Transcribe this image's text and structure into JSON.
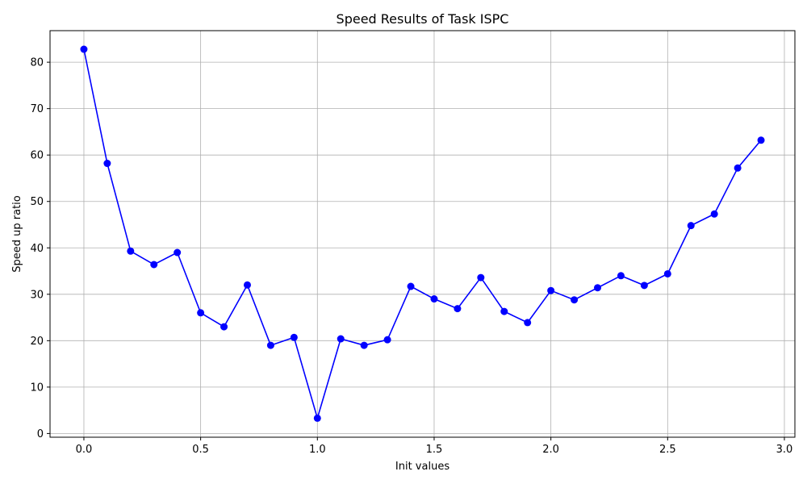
{
  "chart_data": {
    "type": "line",
    "title": "Speed Results of Task ISPC",
    "xlabel": "Init values",
    "ylabel": "Speed up ratio",
    "xlim": [
      -0.145,
      3.045
    ],
    "ylim": [
      -0.8,
      86.8
    ],
    "xticks": [
      0.0,
      0.5,
      1.0,
      1.5,
      2.0,
      2.5,
      3.0
    ],
    "xtick_labels": [
      "0.0",
      "0.5",
      "1.0",
      "1.5",
      "2.0",
      "2.5",
      "3.0"
    ],
    "yticks": [
      0,
      10,
      20,
      30,
      40,
      50,
      60,
      70,
      80
    ],
    "ytick_labels": [
      "0",
      "10",
      "20",
      "30",
      "40",
      "50",
      "60",
      "70",
      "80"
    ],
    "grid": true,
    "series": [
      {
        "color": "#0000ff",
        "marker": "circle",
        "x": [
          0.0,
          0.1,
          0.2,
          0.3,
          0.4,
          0.5,
          0.6,
          0.7,
          0.8,
          0.9,
          1.0,
          1.1,
          1.2,
          1.3,
          1.4,
          1.5,
          1.6,
          1.7,
          1.8,
          1.9,
          2.0,
          2.1,
          2.2,
          2.3,
          2.4,
          2.5,
          2.6,
          2.7,
          2.8,
          2.9
        ],
        "y": [
          82.8,
          58.2,
          39.3,
          36.4,
          39.0,
          26.0,
          23.0,
          32.0,
          19.0,
          20.7,
          3.3,
          20.4,
          19.0,
          20.2,
          31.7,
          29.0,
          26.9,
          33.6,
          26.3,
          23.9,
          30.8,
          28.8,
          31.4,
          34.0,
          31.9,
          34.4,
          44.8,
          47.3,
          57.2,
          63.2
        ]
      }
    ]
  }
}
